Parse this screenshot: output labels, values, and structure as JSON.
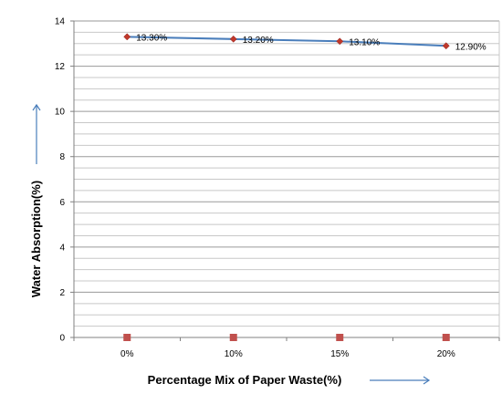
{
  "chart_data": {
    "type": "line",
    "categories": [
      "0%",
      "10%",
      "15%",
      "20%"
    ],
    "series": [
      {
        "values": [
          13.3,
          13.2,
          13.1,
          12.9
        ],
        "data_labels": [
          "13.30%",
          "13.20%",
          "13.10%",
          "12.90%"
        ],
        "color": "#4a7ebb",
        "marker_color": "#c0392b"
      },
      {
        "values": [
          0,
          0,
          0,
          0
        ],
        "color": "#c0504d"
      }
    ],
    "ylim": [
      0,
      14
    ],
    "ytick_labels": [
      "0",
      "2",
      "4",
      "6",
      "8",
      "10",
      "12",
      "14"
    ],
    "xlabel": "Percentage Mix of Paper Waste(%)",
    "ylabel": "Water Absorption(%)",
    "grid": true,
    "legend": "none"
  }
}
